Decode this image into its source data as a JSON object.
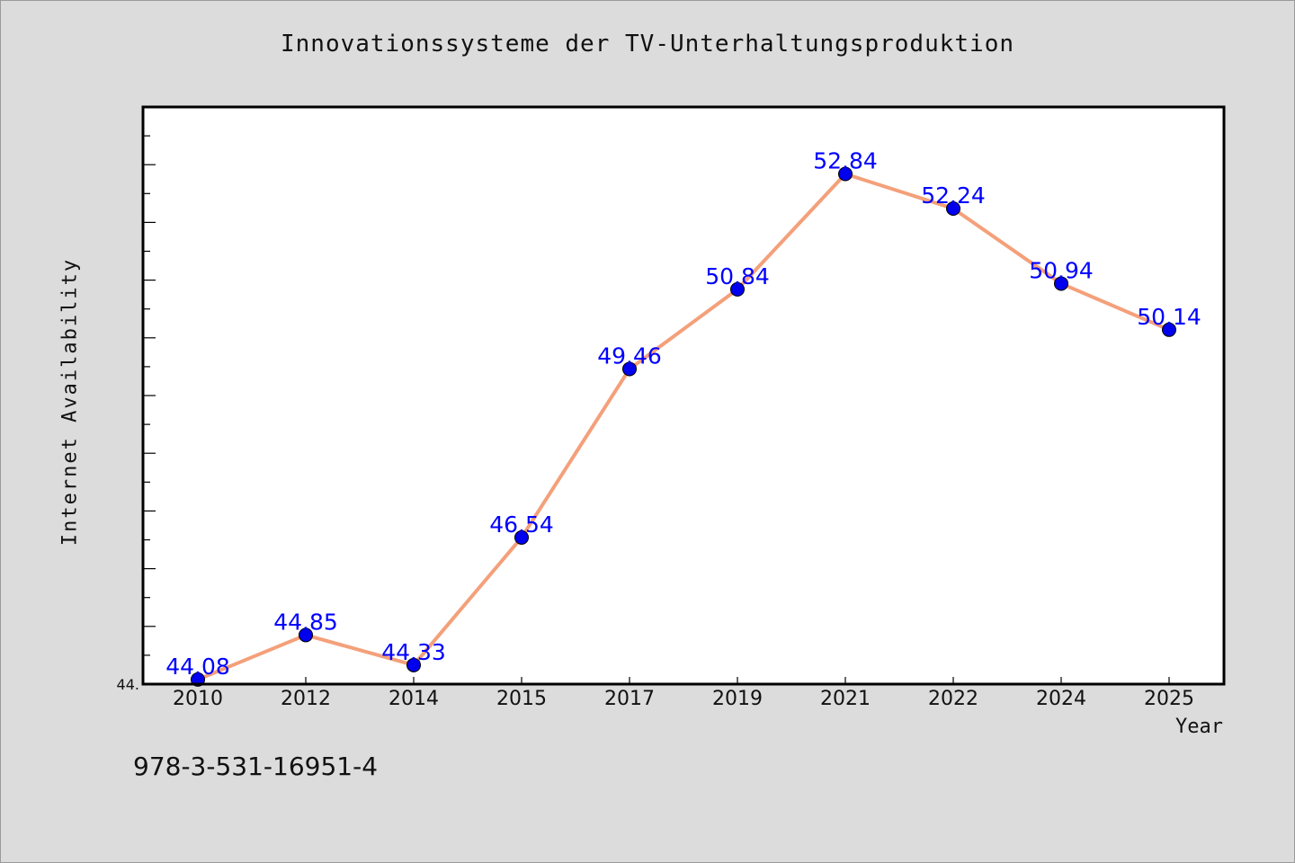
{
  "chart_data": {
    "type": "line",
    "title": "Innovationssysteme der TV-Unterhaltungsproduktion",
    "xlabel": "Year",
    "ylabel": "Internet Availability",
    "categories": [
      "2010",
      "2012",
      "2014",
      "2015",
      "2017",
      "2019",
      "2021",
      "2022",
      "2024",
      "2025"
    ],
    "series": [
      {
        "values": [
          44.08,
          44.85,
          44.33,
          46.54,
          49.46,
          50.84,
          52.84,
          52.24,
          50.94,
          50.14
        ],
        "labels": [
          "44.08",
          "44.85",
          "44.33",
          "46.54",
          "49.46",
          "50.84",
          "52.84",
          "52.24",
          "50.94",
          "50.14"
        ]
      }
    ],
    "ylim": [
      44.0,
      54.0
    ],
    "y_min_tick_label": "44.",
    "grid": false,
    "colors": {
      "line": "#f4a07a",
      "marker": "#0000ee",
      "data_label": "#0000ff",
      "plot_background": "#ffffff",
      "page_background": "#dcdcdc"
    }
  },
  "footer": {
    "isbn": "978-3-531-16951-4"
  }
}
